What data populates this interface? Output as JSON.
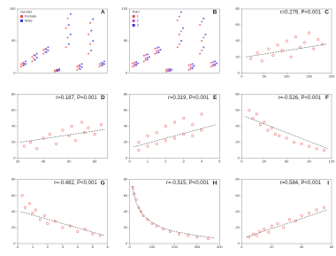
{
  "chart_data": [
    {
      "type": "strip",
      "panel": "A",
      "legend_title": "Gender",
      "categories": [
        null,
        null,
        null,
        null,
        null,
        null,
        null,
        null
      ],
      "ylim": [
        0,
        100
      ],
      "yticks": [
        0,
        50,
        100
      ],
      "series": [
        {
          "name": "Female",
          "color": "#e8504f",
          "values": [
            [
              10,
              12,
              14,
              16
            ],
            [
              18,
              22,
              25,
              28
            ],
            [
              30,
              33,
              36,
              38
            ],
            [
              2,
              3,
              4,
              5
            ],
            [
              40,
              55,
              70,
              85
            ],
            [
              5,
              8,
              10,
              12
            ],
            [
              30,
              45,
              60,
              78
            ],
            [
              10,
              12,
              14,
              16
            ]
          ]
        },
        {
          "name": "Male",
          "color": "#3b3bd6",
          "values": [
            [
              12,
              14,
              15,
              18
            ],
            [
              20,
              24,
              27,
              30
            ],
            [
              32,
              35,
              37,
              40
            ],
            [
              3,
              4,
              5,
              6
            ],
            [
              45,
              60,
              75,
              92
            ],
            [
              6,
              9,
              11,
              14
            ],
            [
              35,
              50,
              66,
              84
            ],
            [
              12,
              14,
              15,
              18
            ]
          ]
        }
      ]
    },
    {
      "type": "strip",
      "panel": "B",
      "legend_title": "Pain",
      "categories": [
        null,
        null,
        null,
        null,
        null,
        null,
        null,
        null
      ],
      "ylim": [
        0,
        100
      ],
      "yticks": [
        0,
        50,
        100
      ],
      "series": [
        {
          "name": "1",
          "color": "#e8504f",
          "values": [
            [
              10,
              13,
              15
            ],
            [
              18,
              23,
              27
            ],
            [
              30,
              34,
              38
            ],
            [
              2,
              4,
              5
            ],
            [
              40,
              60,
              82
            ],
            [
              5,
              9,
              12
            ],
            [
              30,
              50,
              75
            ],
            [
              10,
              13,
              16
            ]
          ]
        },
        {
          "name": "2",
          "color": "#c04fc8",
          "values": [
            [
              11,
              14,
              16
            ],
            [
              20,
              24,
              28
            ],
            [
              31,
              35,
              39
            ],
            [
              3,
              4,
              6
            ],
            [
              45,
              65,
              88
            ],
            [
              6,
              10,
              13
            ],
            [
              35,
              55,
              80
            ],
            [
              11,
              14,
              17
            ]
          ]
        },
        {
          "name": "3",
          "color": "#3b3bd6",
          "values": [
            [
              12,
              15,
              17
            ],
            [
              21,
              25,
              29
            ],
            [
              32,
              36,
              40
            ],
            [
              3,
              5,
              6
            ],
            [
              50,
              70,
              95
            ],
            [
              7,
              11,
              14
            ],
            [
              40,
              60,
              85
            ],
            [
              12,
              15,
              18
            ]
          ]
        }
      ]
    },
    {
      "type": "scatter",
      "panel": "C",
      "annotation": "r=0.279, P<0.001",
      "xlim": [
        0,
        200
      ],
      "xticks": [
        0,
        50,
        100,
        150,
        200
      ],
      "ylim": [
        0,
        80
      ],
      "yticks": [
        0,
        20,
        40,
        60,
        80
      ],
      "color": "#e8504f",
      "x": [
        20,
        35,
        45,
        60,
        70,
        80,
        90,
        100,
        110,
        120,
        130,
        140,
        150,
        160,
        170,
        180
      ],
      "y": [
        18,
        25,
        15,
        30,
        22,
        35,
        28,
        40,
        20,
        45,
        32,
        38,
        50,
        30,
        42,
        36
      ],
      "trend": {
        "x": [
          10,
          190
        ],
        "y": [
          20,
          36
        ]
      }
    },
    {
      "type": "scatter",
      "panel": "D",
      "annotation": "r=0.187, P=0.001",
      "xlim": [
        20,
        90
      ],
      "xticks": [
        20,
        40,
        60,
        80
      ],
      "ylim": [
        0,
        80
      ],
      "yticks": [
        0,
        20,
        40,
        60,
        80
      ],
      "color": "#e8504f",
      "x": [
        25,
        30,
        35,
        40,
        45,
        50,
        55,
        60,
        62,
        65,
        70,
        72,
        75,
        80,
        85
      ],
      "y": [
        15,
        20,
        12,
        25,
        30,
        18,
        35,
        28,
        40,
        22,
        45,
        32,
        38,
        30,
        42
      ],
      "trend": {
        "x": [
          22,
          88
        ],
        "y": [
          20,
          36
        ]
      }
    },
    {
      "type": "scatter",
      "panel": "E",
      "annotation": "r=0.319, P<0.001",
      "xlim": [
        0,
        5
      ],
      "xticks": [
        0,
        1,
        2,
        3,
        4,
        5
      ],
      "ylim": [
        0,
        80
      ],
      "yticks": [
        0,
        20,
        40,
        60,
        80
      ],
      "color": "#e8504f",
      "x": [
        0.5,
        0.5,
        1,
        1,
        1.5,
        1.5,
        2,
        2,
        2.5,
        2.5,
        3,
        3,
        3.5,
        3.5,
        4,
        4
      ],
      "y": [
        10,
        20,
        15,
        28,
        18,
        32,
        22,
        40,
        25,
        45,
        30,
        50,
        28,
        42,
        35,
        55
      ],
      "trend": {
        "x": [
          0.2,
          4.8
        ],
        "y": [
          14,
          42
        ]
      }
    },
    {
      "type": "scatter",
      "panel": "F",
      "annotation": "r=-0.526, P<0.001",
      "xlim": [
        0,
        120
      ],
      "xticks": [
        0,
        30,
        60,
        90,
        120
      ],
      "ylim": [
        0,
        80
      ],
      "yticks": [
        0,
        20,
        40,
        60,
        80
      ],
      "color": "#e8504f",
      "x": [
        10,
        15,
        20,
        25,
        30,
        35,
        40,
        45,
        50,
        60,
        70,
        80,
        90,
        100,
        110
      ],
      "y": [
        60,
        50,
        55,
        42,
        45,
        35,
        38,
        30,
        28,
        25,
        20,
        18,
        15,
        12,
        10
      ],
      "trend": {
        "x": [
          5,
          115
        ],
        "y": [
          52,
          12
        ]
      }
    },
    {
      "type": "scatter",
      "panel": "G",
      "annotation": "r=-0.482, P<0.001",
      "xlim": [
        0,
        6
      ],
      "xticks": [
        0,
        1,
        2,
        3,
        4,
        5,
        6
      ],
      "ylim": [
        0,
        80
      ],
      "yticks": [
        0,
        20,
        40,
        60,
        80
      ],
      "color": "#e8504f",
      "x": [
        0.3,
        0.5,
        0.8,
        1,
        1.2,
        1.5,
        1.8,
        2,
        2.5,
        3,
        3.5,
        4,
        4.5,
        5,
        5.5
      ],
      "y": [
        60,
        45,
        50,
        38,
        42,
        30,
        35,
        25,
        28,
        20,
        22,
        15,
        18,
        12,
        10
      ],
      "trend": {
        "x": [
          0.2,
          5.8
        ],
        "y": [
          40,
          10
        ]
      }
    },
    {
      "type": "scatter",
      "panel": "H",
      "annotation": "r=-0.515, P<0.001",
      "xlim": [
        0,
        400
      ],
      "xticks": [
        0,
        100,
        200,
        300,
        400
      ],
      "ylim": [
        0,
        80
      ],
      "yticks": [
        0,
        20,
        40,
        60,
        80
      ],
      "color": "#e8504f",
      "x": [
        15,
        20,
        30,
        40,
        50,
        60,
        80,
        100,
        120,
        150,
        180,
        220,
        260,
        300,
        350
      ],
      "y": [
        70,
        62,
        55,
        45,
        40,
        35,
        30,
        25,
        22,
        18,
        15,
        12,
        10,
        8,
        6
      ],
      "trend": {
        "x": [
          10,
          30,
          60,
          100,
          150,
          200,
          300,
          380
        ],
        "y": [
          72,
          50,
          35,
          26,
          19,
          15,
          10,
          7
        ]
      }
    },
    {
      "type": "scatter",
      "panel": "I",
      "annotation": "r=0.584, P<0.001",
      "xlim": [
        0,
        60
      ],
      "xticks": [
        0,
        20,
        40,
        60
      ],
      "ylim": [
        0,
        80
      ],
      "yticks": [
        0,
        20,
        40,
        60,
        80
      ],
      "color": "#e8504f",
      "x": [
        5,
        8,
        10,
        12,
        15,
        18,
        20,
        24,
        28,
        32,
        36,
        40,
        45,
        50,
        55
      ],
      "y": [
        8,
        12,
        10,
        15,
        18,
        14,
        22,
        25,
        20,
        30,
        28,
        35,
        38,
        42,
        45
      ],
      "trend": {
        "x": [
          3,
          57
        ],
        "y": [
          8,
          42
        ]
      }
    }
  ]
}
